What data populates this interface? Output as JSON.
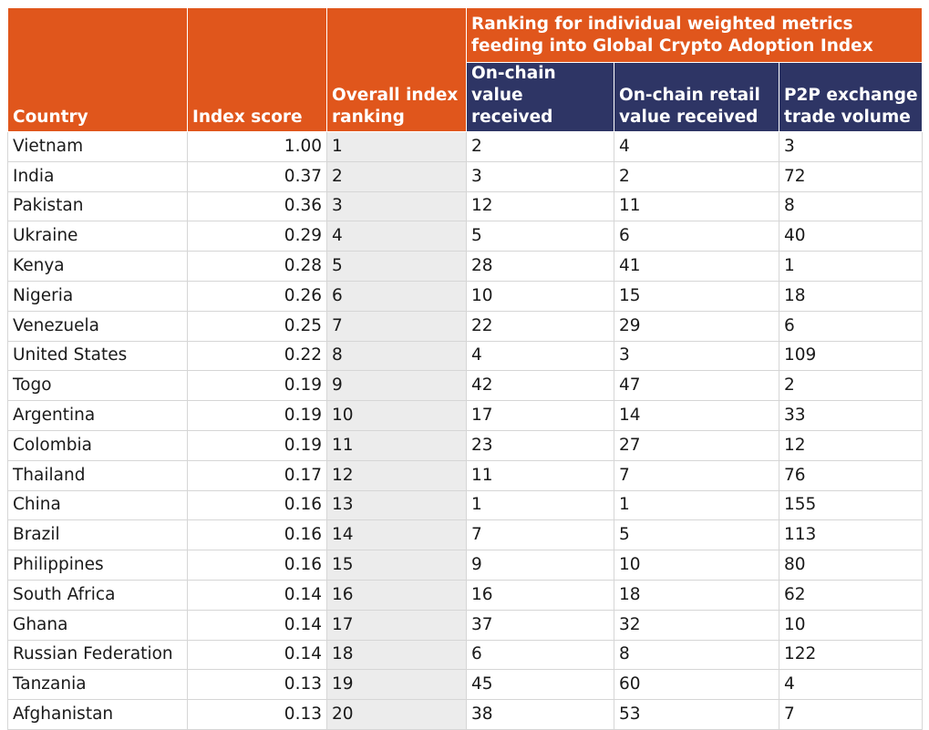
{
  "chart_data": {
    "type": "table",
    "group_header": "Ranking for individual weighted metrics feeding into Global Crypto Adoption Index",
    "columns": [
      "Country",
      "Index score",
      "Overall index ranking",
      "On-chain value received",
      "On-chain retail value received",
      "P2P exchange trade volume"
    ],
    "rows": [
      [
        "Vietnam",
        "1.00",
        "1",
        "2",
        "4",
        "3"
      ],
      [
        "India",
        "0.37",
        "2",
        "3",
        "2",
        "72"
      ],
      [
        "Pakistan",
        "0.36",
        "3",
        "12",
        "11",
        "8"
      ],
      [
        "Ukraine",
        "0.29",
        "4",
        "5",
        "6",
        "40"
      ],
      [
        "Kenya",
        "0.28",
        "5",
        "28",
        "41",
        "1"
      ],
      [
        "Nigeria",
        "0.26",
        "6",
        "10",
        "15",
        "18"
      ],
      [
        "Venezuela",
        "0.25",
        "7",
        "22",
        "29",
        "6"
      ],
      [
        "United States",
        "0.22",
        "8",
        "4",
        "3",
        "109"
      ],
      [
        "Togo",
        "0.19",
        "9",
        "42",
        "47",
        "2"
      ],
      [
        "Argentina",
        "0.19",
        "10",
        "17",
        "14",
        "33"
      ],
      [
        "Colombia",
        "0.19",
        "11",
        "23",
        "27",
        "12"
      ],
      [
        "Thailand",
        "0.17",
        "12",
        "11",
        "7",
        "76"
      ],
      [
        "China",
        "0.16",
        "13",
        "1",
        "1",
        "155"
      ],
      [
        "Brazil",
        "0.16",
        "14",
        "7",
        "5",
        "113"
      ],
      [
        "Philippines",
        "0.16",
        "15",
        "9",
        "10",
        "80"
      ],
      [
        "South Africa",
        "0.14",
        "16",
        "16",
        "18",
        "62"
      ],
      [
        "Ghana",
        "0.14",
        "17",
        "37",
        "32",
        "10"
      ],
      [
        "Russian Federation",
        "0.14",
        "18",
        "6",
        "8",
        "122"
      ],
      [
        "Tanzania",
        "0.13",
        "19",
        "45",
        "60",
        "4"
      ],
      [
        "Afghanistan",
        "0.13",
        "20",
        "38",
        "53",
        "7"
      ]
    ],
    "colors": {
      "header_orange": "#e0561c",
      "header_navy": "#2e3565",
      "ranking_column": "#ececec"
    }
  }
}
